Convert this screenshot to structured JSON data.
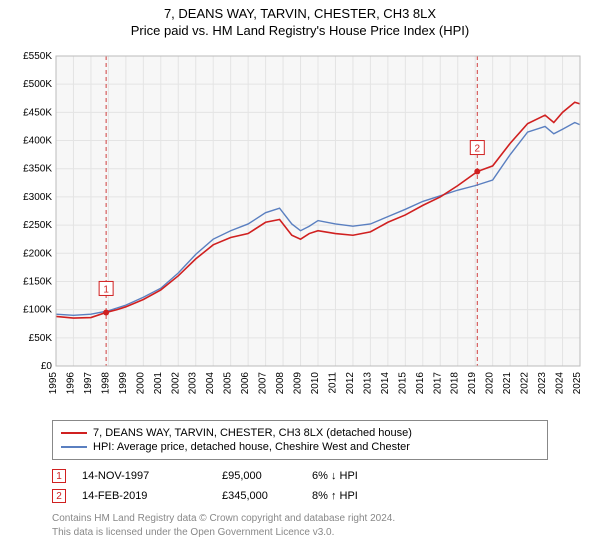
{
  "title_line1": "7, DEANS WAY, TARVIN, CHESTER, CH3 8LX",
  "title_line2": "Price paid vs. HM Land Registry's House Price Index (HPI)",
  "chart": {
    "type": "line",
    "background_color": "#ffffff",
    "plot_background_color": "#f7f7f7",
    "grid_color": "#e4e4e4",
    "axis_text_color": "#000000",
    "axis_fontsize": 10,
    "ylabel_prefix": "£",
    "ylim": [
      0,
      550000
    ],
    "ytick_step": 50000,
    "yticks": [
      "£0",
      "£50K",
      "£100K",
      "£150K",
      "£200K",
      "£250K",
      "£300K",
      "£350K",
      "£400K",
      "£450K",
      "£500K",
      "£550K"
    ],
    "xlim": [
      1995,
      2025
    ],
    "xtick_step": 1,
    "xticks": [
      "1995",
      "1996",
      "1997",
      "1998",
      "1999",
      "2000",
      "2001",
      "2002",
      "2003",
      "2004",
      "2005",
      "2006",
      "2007",
      "2008",
      "2009",
      "2010",
      "2011",
      "2012",
      "2013",
      "2014",
      "2015",
      "2016",
      "2017",
      "2018",
      "2019",
      "2020",
      "2021",
      "2022",
      "2023",
      "2024",
      "2025"
    ],
    "sale_guideline_color": "#d04040",
    "sale_guideline_dash": "4,3",
    "series": [
      {
        "name": "price_paid",
        "label": "7, DEANS WAY, TARVIN, CHESTER, CH3 8LX (detached house)",
        "color": "#d02020",
        "line_width": 1.6,
        "data": [
          [
            1995.0,
            88000
          ],
          [
            1996.0,
            85000
          ],
          [
            1997.0,
            86000
          ],
          [
            1997.87,
            95000
          ],
          [
            1998.5,
            100000
          ],
          [
            1999.0,
            105000
          ],
          [
            2000.0,
            118000
          ],
          [
            2001.0,
            135000
          ],
          [
            2002.0,
            160000
          ],
          [
            2003.0,
            190000
          ],
          [
            2004.0,
            215000
          ],
          [
            2005.0,
            228000
          ],
          [
            2006.0,
            235000
          ],
          [
            2007.0,
            255000
          ],
          [
            2007.8,
            260000
          ],
          [
            2008.5,
            232000
          ],
          [
            2009.0,
            225000
          ],
          [
            2009.5,
            235000
          ],
          [
            2010.0,
            240000
          ],
          [
            2011.0,
            235000
          ],
          [
            2012.0,
            232000
          ],
          [
            2013.0,
            238000
          ],
          [
            2014.0,
            255000
          ],
          [
            2015.0,
            268000
          ],
          [
            2016.0,
            285000
          ],
          [
            2017.0,
            300000
          ],
          [
            2018.0,
            320000
          ],
          [
            2019.12,
            345000
          ],
          [
            2020.0,
            355000
          ],
          [
            2021.0,
            395000
          ],
          [
            2022.0,
            430000
          ],
          [
            2023.0,
            445000
          ],
          [
            2023.5,
            432000
          ],
          [
            2024.0,
            450000
          ],
          [
            2024.7,
            468000
          ],
          [
            2025.0,
            465000
          ]
        ]
      },
      {
        "name": "hpi",
        "label": "HPI: Average price, detached house, Cheshire West and Chester",
        "color": "#5a7fc0",
        "line_width": 1.4,
        "data": [
          [
            1995.0,
            92000
          ],
          [
            1996.0,
            90000
          ],
          [
            1997.0,
            92000
          ],
          [
            1998.0,
            98000
          ],
          [
            1999.0,
            108000
          ],
          [
            2000.0,
            122000
          ],
          [
            2001.0,
            138000
          ],
          [
            2002.0,
            165000
          ],
          [
            2003.0,
            198000
          ],
          [
            2004.0,
            225000
          ],
          [
            2005.0,
            240000
          ],
          [
            2006.0,
            252000
          ],
          [
            2007.0,
            272000
          ],
          [
            2007.8,
            280000
          ],
          [
            2008.5,
            252000
          ],
          [
            2009.0,
            240000
          ],
          [
            2009.5,
            248000
          ],
          [
            2010.0,
            258000
          ],
          [
            2011.0,
            252000
          ],
          [
            2012.0,
            248000
          ],
          [
            2013.0,
            252000
          ],
          [
            2014.0,
            265000
          ],
          [
            2015.0,
            278000
          ],
          [
            2016.0,
            292000
          ],
          [
            2017.0,
            302000
          ],
          [
            2018.0,
            312000
          ],
          [
            2019.0,
            320000
          ],
          [
            2020.0,
            330000
          ],
          [
            2021.0,
            375000
          ],
          [
            2022.0,
            415000
          ],
          [
            2023.0,
            425000
          ],
          [
            2023.5,
            412000
          ],
          [
            2024.0,
            420000
          ],
          [
            2024.7,
            432000
          ],
          [
            2025.0,
            428000
          ]
        ]
      }
    ],
    "sale_markers": [
      {
        "id": "1",
        "x": 1997.87,
        "y": 95000,
        "box_color": "#d02020",
        "y_label_offset": -22
      },
      {
        "id": "2",
        "x": 2019.12,
        "y": 345000,
        "box_color": "#d02020",
        "y_label_offset": -22
      }
    ]
  },
  "legend": {
    "border_color": "#888888",
    "entries": [
      {
        "color": "#d02020",
        "label": "7, DEANS WAY, TARVIN, CHESTER, CH3 8LX (detached house)"
      },
      {
        "color": "#5a7fc0",
        "label": "HPI: Average price, detached house, Cheshire West and Chester"
      }
    ]
  },
  "sales": [
    {
      "marker": "1",
      "marker_color": "#d02020",
      "date": "14-NOV-1997",
      "price": "£95,000",
      "delta": "6% ↓ HPI"
    },
    {
      "marker": "2",
      "marker_color": "#d02020",
      "date": "14-FEB-2019",
      "price": "£345,000",
      "delta": "8% ↑ HPI"
    }
  ],
  "footer": {
    "line1": "Contains HM Land Registry data © Crown copyright and database right 2024.",
    "line2": "This data is licensed under the Open Government Licence v3.0.",
    "color": "#888888"
  }
}
